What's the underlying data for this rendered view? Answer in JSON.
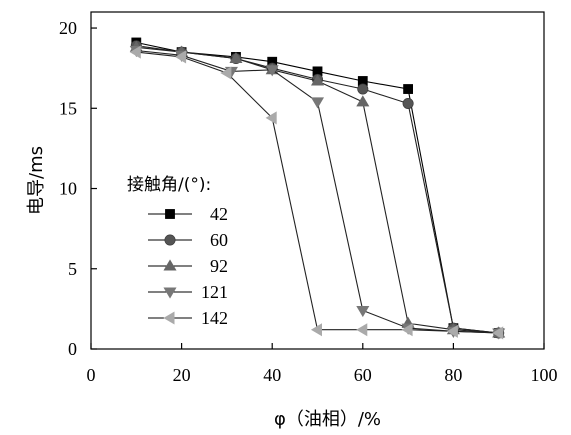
{
  "chart_data": {
    "type": "line",
    "title": "",
    "xlabel": "φ（油相）/%",
    "ylabel": "电导/ms",
    "xlim": [
      0,
      100
    ],
    "ylim": [
      0,
      21
    ],
    "xticks": [
      0,
      20,
      40,
      60,
      80,
      100
    ],
    "yticks": [
      0,
      5,
      10,
      15,
      20
    ],
    "grid": false,
    "legend_title": "接触角/(°):",
    "legend_position": "middle-left",
    "series": [
      {
        "name": "42",
        "marker": "square",
        "color": "#000000",
        "x": [
          10,
          20,
          32,
          40,
          50,
          60,
          70,
          80,
          90
        ],
        "y": [
          19.1,
          18.5,
          18.2,
          17.9,
          17.3,
          16.7,
          16.2,
          1.3,
          1.0
        ]
      },
      {
        "name": "60",
        "marker": "circle",
        "color": "#555555",
        "x": [
          10,
          20,
          32,
          40,
          50,
          60,
          70,
          80,
          90
        ],
        "y": [
          18.9,
          18.5,
          18.1,
          17.5,
          16.8,
          16.2,
          15.3,
          1.3,
          1.0
        ]
      },
      {
        "name": "92",
        "marker": "triangle-up",
        "color": "#666666",
        "x": [
          10,
          20,
          32,
          40,
          50,
          60,
          70,
          80,
          90
        ],
        "y": [
          18.8,
          18.5,
          18.1,
          17.4,
          16.7,
          15.4,
          1.6,
          1.2,
          1.0
        ]
      },
      {
        "name": "121",
        "marker": "triangle-down",
        "color": "#777777",
        "x": [
          10,
          20,
          31,
          40,
          50,
          60,
          70,
          80,
          90
        ],
        "y": [
          18.6,
          18.3,
          17.3,
          17.4,
          15.4,
          2.4,
          1.3,
          1.1,
          1.0
        ]
      },
      {
        "name": "142",
        "marker": "triangle-left",
        "color": "#aaaaaa",
        "x": [
          10,
          20,
          30,
          40,
          50,
          60,
          70,
          80,
          90
        ],
        "y": [
          18.5,
          18.2,
          17.2,
          14.4,
          1.2,
          1.2,
          1.2,
          1.1,
          1.0
        ]
      }
    ]
  }
}
